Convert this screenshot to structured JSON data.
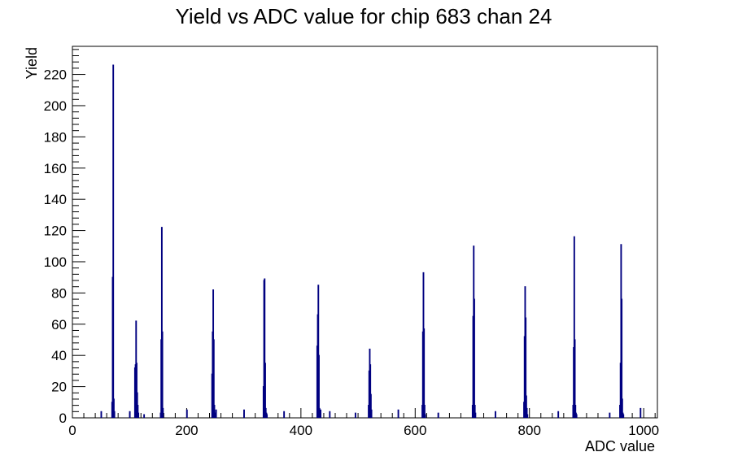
{
  "chart_data": {
    "type": "bar",
    "title": "Yield vs ADC value for chip 683 chan 24",
    "xlabel": "ADC value",
    "ylabel": "Yield",
    "xlim": [
      0,
      1024
    ],
    "ylim": [
      0,
      238
    ],
    "x_major_ticks": [
      0,
      200,
      400,
      600,
      800,
      1000
    ],
    "y_major_ticks": [
      0,
      20,
      40,
      60,
      80,
      100,
      120,
      140,
      160,
      180,
      200,
      220
    ],
    "grid": false,
    "legend": "none",
    "line_color": "#000080",
    "series": [
      {
        "x": [
          50,
          69,
          70,
          71,
          72,
          73,
          100,
          109,
          110,
          111,
          112,
          113,
          114,
          115,
          125,
          154,
          155,
          156,
          157,
          158,
          200,
          244,
          245,
          246,
          247,
          248,
          249,
          250,
          251,
          300,
          334,
          335,
          336,
          337,
          338,
          339,
          340,
          370,
          428,
          429,
          430,
          431,
          432,
          433,
          434,
          450,
          495,
          518,
          519,
          520,
          521,
          522,
          523,
          570,
          612,
          613,
          614,
          615,
          616,
          617,
          640,
          700,
          701,
          702,
          703,
          704,
          705,
          740,
          790,
          791,
          792,
          793,
          794,
          795,
          796,
          850,
          876,
          877,
          878,
          879,
          880,
          881,
          882,
          940,
          958,
          959,
          960,
          961,
          962,
          963,
          964,
          994
        ],
        "values": [
          4,
          10,
          90,
          226,
          12,
          4,
          4,
          32,
          34,
          62,
          35,
          16,
          8,
          3,
          2,
          3,
          50,
          122,
          55,
          6,
          5,
          28,
          55,
          82,
          50,
          8,
          3,
          3,
          5,
          5,
          20,
          88,
          89,
          35,
          6,
          3,
          2,
          4,
          46,
          66,
          85,
          40,
          6,
          2,
          5,
          4,
          3,
          8,
          30,
          44,
          34,
          15,
          5,
          5,
          8,
          55,
          93,
          57,
          8,
          2,
          3,
          8,
          65,
          110,
          76,
          8,
          3,
          4,
          10,
          52,
          84,
          64,
          14,
          6,
          2,
          4,
          8,
          45,
          116,
          50,
          8,
          3,
          2,
          3,
          8,
          35,
          111,
          76,
          12,
          3,
          2,
          6
        ]
      }
    ]
  }
}
